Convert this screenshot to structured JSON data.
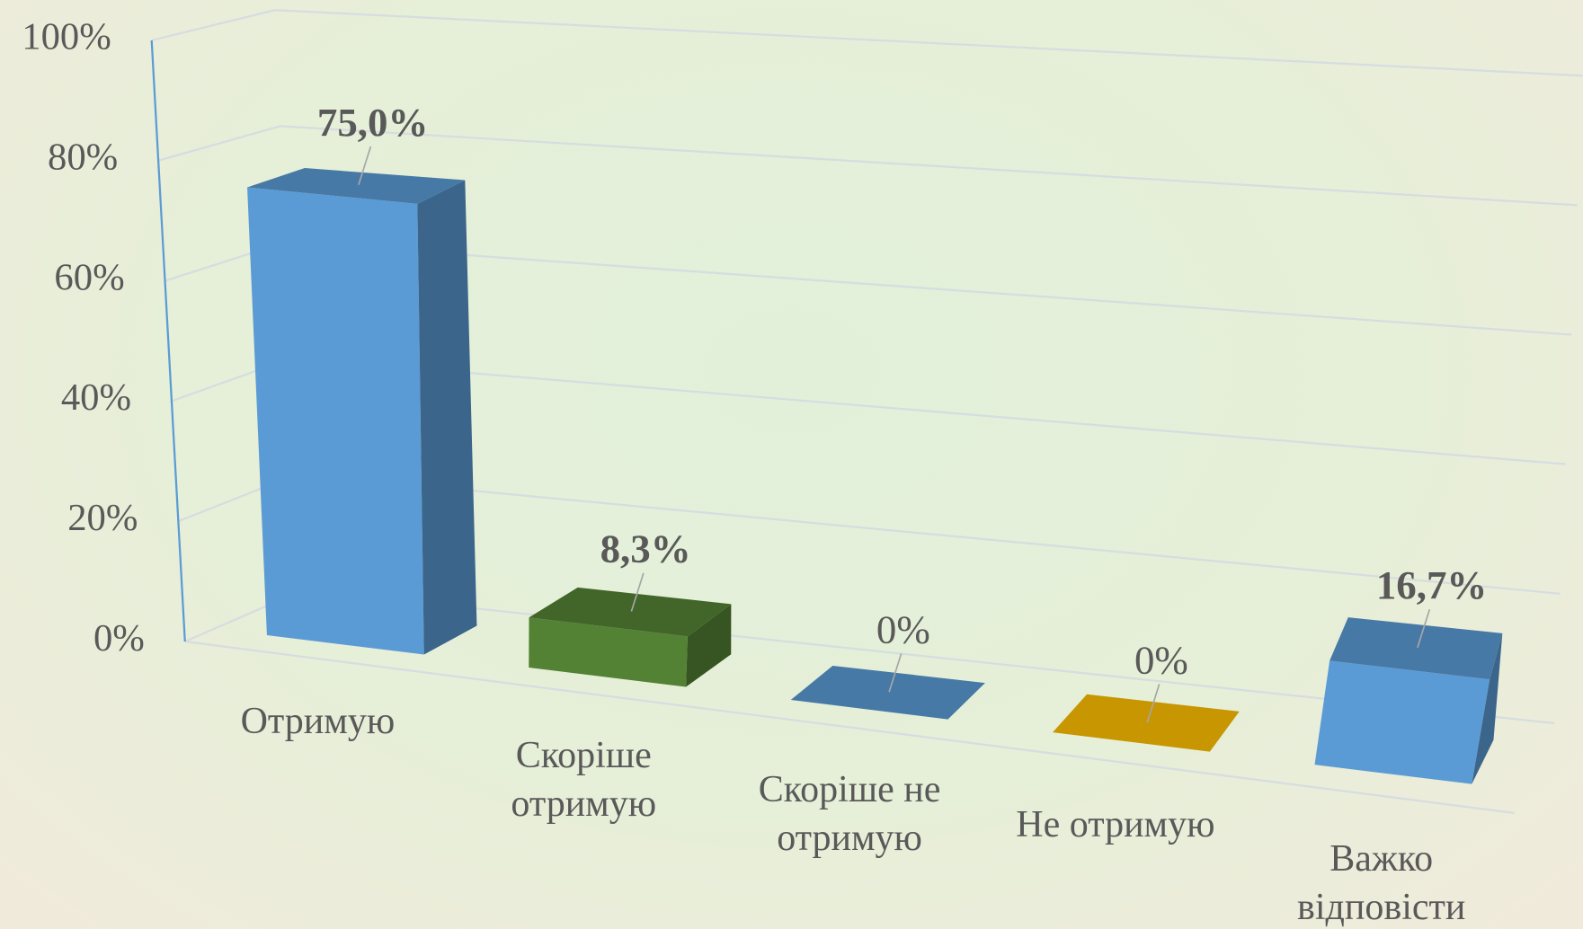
{
  "chart_data": {
    "type": "bar3d",
    "categories": [
      "Отримую",
      "Скоріше отримую",
      "Скоріше не отримую",
      "Не отримую",
      "Важко відповісти"
    ],
    "values": [
      75,
      8.3,
      0,
      0,
      16.7
    ],
    "value_labels": [
      "75,0%",
      "8,3%",
      "0%",
      "0%",
      "16,7%"
    ],
    "colors": [
      "#5b9bd5",
      "#548235",
      "#5b9bd5",
      "#ffc000",
      "#5b9bd5"
    ],
    "ylim": [
      0,
      100
    ],
    "yticks": [
      {
        "value": 0,
        "label": "0%"
      },
      {
        "value": 20,
        "label": "20%"
      },
      {
        "value": 40,
        "label": "40%"
      },
      {
        "value": 60,
        "label": "60%"
      },
      {
        "value": 80,
        "label": "80%"
      },
      {
        "value": 100,
        "label": "100%"
      }
    ],
    "grid": true
  }
}
